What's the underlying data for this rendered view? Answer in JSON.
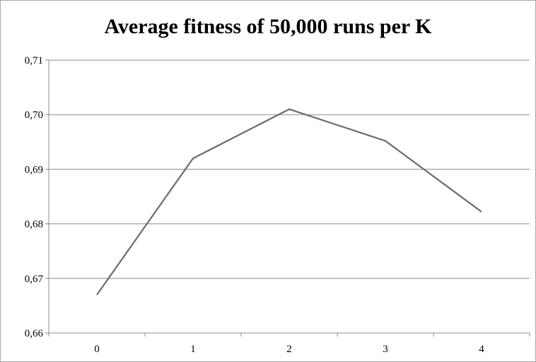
{
  "chart_data": {
    "type": "line",
    "title": "Average fitness of 50,000 runs per K",
    "xlabel": "",
    "ylabel": "",
    "categories": [
      "0",
      "1",
      "2",
      "3",
      "4"
    ],
    "series": [
      {
        "values": [
          0.667,
          0.692,
          0.701,
          0.6952,
          0.6822
        ]
      }
    ],
    "ylim": [
      0.66,
      0.71
    ],
    "yticks": [
      0.66,
      0.67,
      0.68,
      0.69,
      0.7,
      0.71
    ],
    "ytick_labels": [
      "0,66",
      "0,67",
      "0,68",
      "0,69",
      "0,70",
      "0,71"
    ],
    "grid": "horizontal",
    "legend": "none",
    "line_color": "#6b6b6b",
    "grid_color": "#8c8c8c"
  }
}
